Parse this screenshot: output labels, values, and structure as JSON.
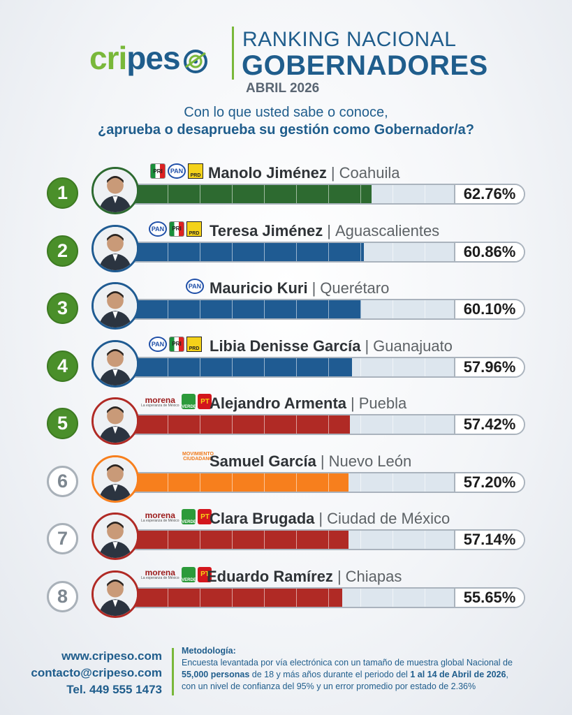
{
  "header": {
    "logo_part1": "cri",
    "logo_part2": "pes",
    "title_line1": "RANKING NACIONAL",
    "title_line2": "GOBERNADORES",
    "date": "ABRIL 2026"
  },
  "question": {
    "line1": "Con lo que usted sabe o conoce,",
    "line2": "¿aprueba o desaprueba su gestión como Gobernador/a?"
  },
  "colors": {
    "green": "#2d6a30",
    "blue": "#1f5b92",
    "red": "#b02a25",
    "orange": "#f77f1d",
    "track": "#dde6ee"
  },
  "chart_data": {
    "type": "bar",
    "categories": [
      "Manolo Jiménez",
      "Teresa Jiménez",
      "Mauricio Kuri",
      "Libia Denisse García",
      "Alejandro Armenta",
      "Samuel García",
      "Clara Brugada",
      "Eduardo Ramírez"
    ],
    "values": [
      62.76,
      60.86,
      60.1,
      57.96,
      57.42,
      57.2,
      57.14,
      55.65
    ],
    "xlim": [
      0,
      100
    ],
    "rows": [
      {
        "rank": "1",
        "name": "Manolo Jiménez",
        "state": "Coahuila",
        "value": 62.76,
        "label": "62.76%",
        "color": "#2d6a30",
        "ring": "#2d6a30",
        "parties": [
          "PRI",
          "PAN",
          "PRD"
        ],
        "top": true
      },
      {
        "rank": "2",
        "name": "Teresa Jiménez",
        "state": "Aguascalientes",
        "value": 60.86,
        "label": "60.86%",
        "color": "#1f5b92",
        "ring": "#1f5b92",
        "parties": [
          "PAN",
          "PRI",
          "PRD"
        ],
        "top": true
      },
      {
        "rank": "3",
        "name": "Mauricio Kuri",
        "state": "Querétaro",
        "value": 60.1,
        "label": "60.10%",
        "color": "#1f5b92",
        "ring": "#1f5b92",
        "parties": [
          "PAN"
        ],
        "top": true
      },
      {
        "rank": "4",
        "name": "Libia Denisse García",
        "state": "Guanajuato",
        "value": 57.96,
        "label": "57.96%",
        "color": "#1f5b92",
        "ring": "#1f5b92",
        "parties": [
          "PAN",
          "PRI",
          "PRD"
        ],
        "top": true
      },
      {
        "rank": "5",
        "name": "Alejandro Armenta",
        "state": "Puebla",
        "value": 57.42,
        "label": "57.42%",
        "color": "#b02a25",
        "ring": "#b02a25",
        "parties": [
          "morena",
          "VERDE",
          "PT"
        ],
        "top": true
      },
      {
        "rank": "6",
        "name": "Samuel García",
        "state": "Nuevo León",
        "value": 57.2,
        "label": "57.20%",
        "color": "#f77f1d",
        "ring": "#f77f1d",
        "parties": [
          "MC"
        ],
        "top": false
      },
      {
        "rank": "7",
        "name": "Clara Brugada",
        "state": "Ciudad de México",
        "value": 57.14,
        "label": "57.14%",
        "color": "#b02a25",
        "ring": "#b02a25",
        "parties": [
          "morena",
          "VERDE",
          "PT"
        ],
        "top": false
      },
      {
        "rank": "8",
        "name": "Eduardo Ramírez",
        "state": "Chiapas",
        "value": 55.65,
        "label": "55.65%",
        "color": "#b02a25",
        "ring": "#b02a25",
        "parties": [
          "morena",
          "VERDE",
          "PT"
        ],
        "top": false
      }
    ]
  },
  "party_labels": {
    "PRI": "PRI",
    "PAN": "PAN",
    "PRD": "PRD",
    "morena": "morena",
    "morena_sub": "La esperanza de México",
    "VERDE": "VERDE",
    "PT": "PT",
    "MC_top": "MOVIMIENTO",
    "MC_bottom": "CIUDADANO"
  },
  "footer": {
    "website": "www.cripeso.com",
    "email": "contacto@cripeso.com",
    "phone": "Tel. 449 555 1473",
    "method_title": "Metodología:",
    "method_p1": "Encuesta levantada por vía electrónica con un tamaño de muestra global Nacional de",
    "method_b1": "55,000 personas",
    "method_p2": " de 18 y más años durante el periodo del ",
    "method_b2": "1 al 14 de Abril de 2026",
    "method_p3": ",",
    "method_p4": "con un nivel de confianza del 95% y un error promedio por estado de 2.36%"
  }
}
